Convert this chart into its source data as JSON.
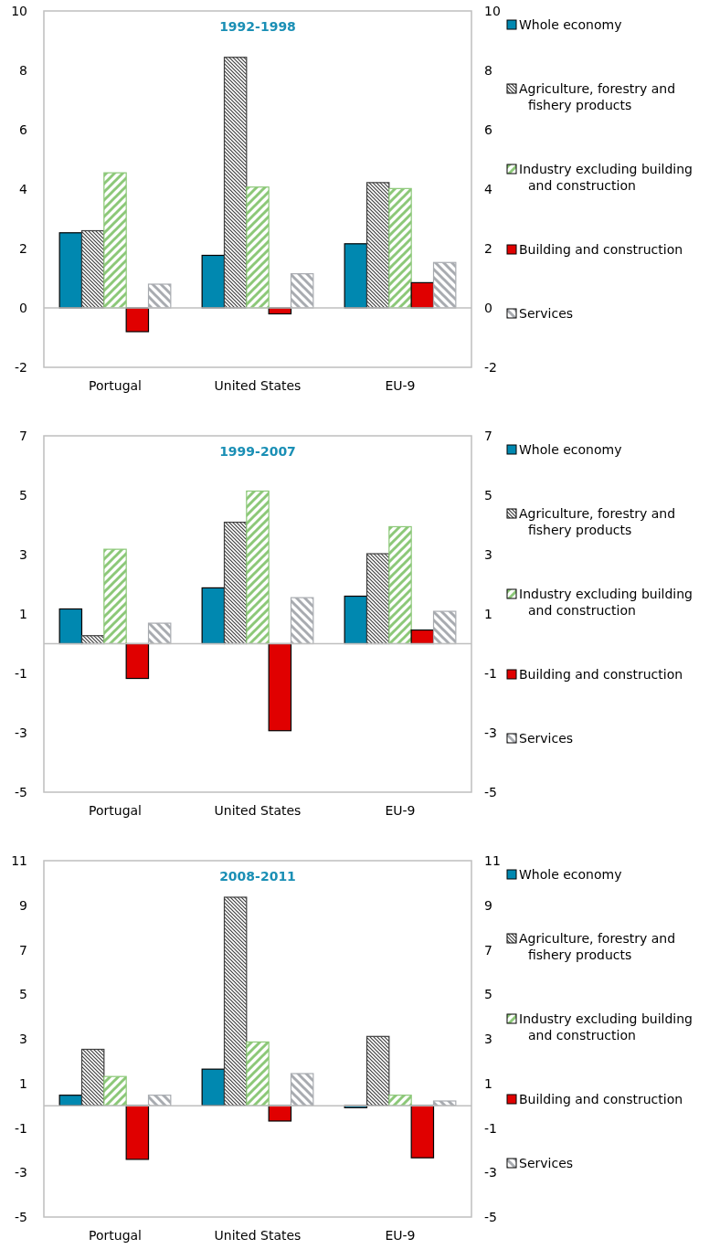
{
  "chart_data": [
    {
      "type": "bar",
      "title": "1992-1998",
      "categories": [
        "Portugal",
        "United States",
        "EU-9"
      ],
      "legend": "right",
      "ylim": [
        -2,
        10
      ],
      "yticks": [
        -2,
        0,
        2,
        4,
        6,
        8,
        10
      ],
      "y2lim": [
        -2,
        10
      ],
      "y2ticks": [
        -2,
        0,
        2,
        4,
        6,
        8,
        10
      ],
      "series": [
        {
          "name": "Whole economy",
          "color": "#0088b0",
          "values": [
            2.53,
            1.77,
            2.16
          ]
        },
        {
          "name": "Agriculture, forestry and fishery products",
          "color": "#404040",
          "values": [
            2.6,
            8.44,
            4.22
          ]
        },
        {
          "name": "Industry excluding building and construction",
          "color": "#8cc878",
          "values": [
            4.55,
            4.07,
            4.02
          ]
        },
        {
          "name": "Building and construction",
          "color": "#e00000",
          "values": [
            -0.8,
            -0.2,
            0.85
          ]
        },
        {
          "name": "Services",
          "color": "#a8abb0",
          "values": [
            0.8,
            1.15,
            1.53
          ]
        }
      ]
    },
    {
      "type": "bar",
      "title": "1999-2007",
      "categories": [
        "Portugal",
        "United States",
        "EU-9"
      ],
      "legend": "right",
      "ylim": [
        -5,
        7
      ],
      "yticks": [
        -5,
        -3,
        -1,
        1,
        3,
        5,
        7
      ],
      "y2lim": [
        -5,
        7
      ],
      "y2ticks": [
        -5,
        -3,
        -1,
        1,
        3,
        5,
        7
      ],
      "series": [
        {
          "name": "Whole economy",
          "color": "#0088b0",
          "values": [
            1.17,
            1.88,
            1.6
          ]
        },
        {
          "name": "Agriculture, forestry and fishery products",
          "color": "#404040",
          "values": [
            0.27,
            4.09,
            3.03
          ]
        },
        {
          "name": "Industry excluding building and construction",
          "color": "#8cc878",
          "values": [
            3.18,
            5.14,
            3.94
          ]
        },
        {
          "name": "Building and construction",
          "color": "#e00000",
          "values": [
            -1.17,
            -2.93,
            0.46
          ]
        },
        {
          "name": "Services",
          "color": "#a8abb0",
          "values": [
            0.69,
            1.55,
            1.09
          ]
        }
      ]
    },
    {
      "type": "bar",
      "title": "2008-2011",
      "categories": [
        "Portugal",
        "United States",
        "EU-9"
      ],
      "legend": "right",
      "ylim": [
        -5,
        11
      ],
      "yticks": [
        -5,
        -3,
        -1,
        1,
        3,
        5,
        7,
        9,
        11
      ],
      "y2lim": [
        -5,
        11
      ],
      "y2ticks": [
        -5,
        -3,
        -1,
        1,
        3,
        5,
        7,
        9,
        11
      ],
      "series": [
        {
          "name": "Whole economy",
          "color": "#0088b0",
          "values": [
            0.47,
            1.64,
            -0.09
          ]
        },
        {
          "name": "Agriculture, forestry and fishery products",
          "color": "#404040",
          "values": [
            2.53,
            9.36,
            3.11
          ]
        },
        {
          "name": "Industry excluding building and construction",
          "color": "#8cc878",
          "values": [
            1.31,
            2.86,
            0.47
          ]
        },
        {
          "name": "Building and construction",
          "color": "#e00000",
          "values": [
            -2.41,
            -0.69,
            -2.34
          ]
        },
        {
          "name": "Services",
          "color": "#a8abb0",
          "values": [
            0.47,
            1.44,
            0.21
          ]
        }
      ]
    }
  ]
}
